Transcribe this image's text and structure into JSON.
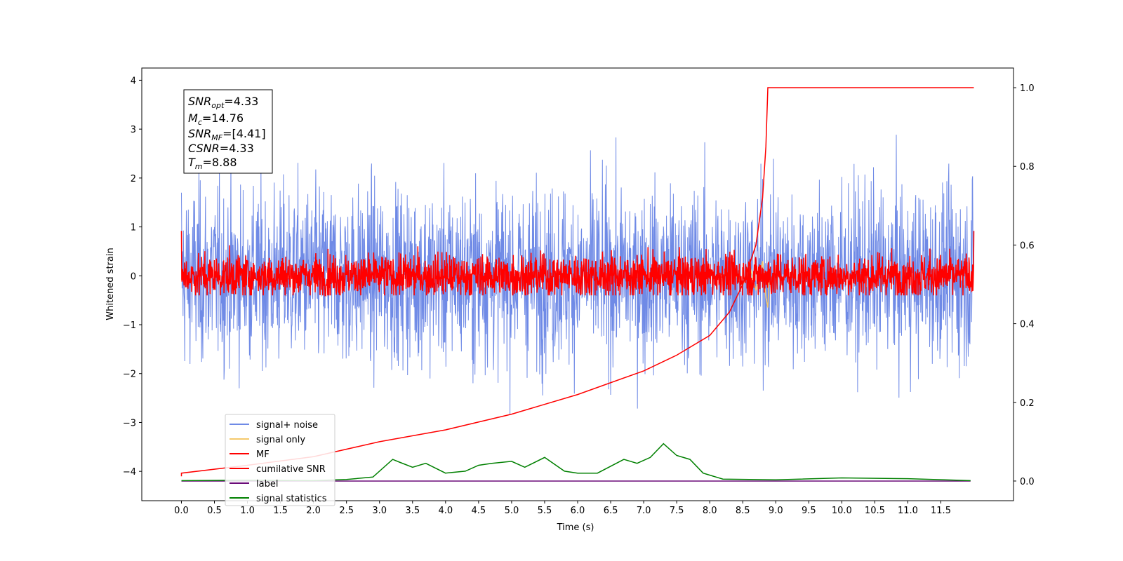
{
  "chart_data": {
    "type": "line",
    "xlabel": "Time (s)",
    "ylabel": "Whitened strain",
    "xlim": [
      -0.6,
      12.6
    ],
    "ylim": [
      -4.6,
      4.25
    ],
    "y2lim": [
      -0.05,
      1.05
    ],
    "xticks": [
      "0.0",
      "0.5",
      "1.0",
      "1.5",
      "2.0",
      "2.5",
      "3.0",
      "3.5",
      "4.0",
      "4.5",
      "5.0",
      "5.5",
      "6.0",
      "6.5",
      "7.0",
      "7.5",
      "8.0",
      "8.5",
      "9.0",
      "9.5",
      "10.0",
      "10.5",
      "11.0",
      "11.5"
    ],
    "yticks": [
      4,
      3,
      2,
      1,
      0,
      -1,
      -2,
      -3,
      -4
    ],
    "ytick_labels": [
      "4",
      "3",
      "2",
      "1",
      "0",
      "−1",
      "−2",
      "−3",
      "−4"
    ],
    "y2ticks": [
      "0.0",
      "0.2",
      "0.4",
      "0.6",
      "0.8",
      "1.0"
    ],
    "annotation": [
      {
        "main": "SNR",
        "sub": "opt",
        "value": "=4.33"
      },
      {
        "main": "M",
        "sub": "c",
        "value": "=14.76"
      },
      {
        "main": "SNR",
        "sub": "MF",
        "value": "=[4.41]"
      },
      {
        "main": "CSNR",
        "sub": "",
        "value": "=4.33"
      },
      {
        "main": "T",
        "sub": "m",
        "value": "=8.88"
      }
    ],
    "legend_position": "lower-left",
    "series": [
      {
        "name": "signal+ noise",
        "color": "#6f8ae6",
        "axis": "left",
        "description_values": {
          "t_start": 0.0,
          "t_end": 12.0,
          "std": 0.9
        }
      },
      {
        "name": "signal only",
        "color": "#f5c96b",
        "axis": "left",
        "values": [
          [
            8.4,
            0.0
          ],
          [
            8.5,
            -0.2
          ],
          [
            8.6,
            0.25
          ],
          [
            8.7,
            -0.3
          ],
          [
            8.8,
            0.3
          ],
          [
            8.85,
            -0.45
          ],
          [
            8.88,
            -0.65
          ],
          [
            8.9,
            0.0
          ]
        ]
      },
      {
        "name": "MF",
        "color": "#ff0000",
        "axis": "left",
        "description_values": {
          "t_start": 0.0,
          "t_end": 12.0,
          "std": 0.22
        }
      },
      {
        "name": "cumilative SNR",
        "color": "#ff0000",
        "axis": "right",
        "values": [
          [
            0.0,
            0.012
          ],
          [
            0.0,
            0.02
          ],
          [
            1.0,
            0.04
          ],
          [
            2.0,
            0.062
          ],
          [
            3.0,
            0.1
          ],
          [
            4.0,
            0.13
          ],
          [
            5.0,
            0.17
          ],
          [
            6.0,
            0.22
          ],
          [
            7.0,
            0.28
          ],
          [
            7.5,
            0.32
          ],
          [
            8.0,
            0.37
          ],
          [
            8.3,
            0.43
          ],
          [
            8.5,
            0.5
          ],
          [
            8.7,
            0.6
          ],
          [
            8.8,
            0.72
          ],
          [
            8.85,
            0.85
          ],
          [
            8.88,
            1.0
          ],
          [
            12.0,
            1.0
          ]
        ]
      },
      {
        "name": "label",
        "color": "#6a0a78",
        "axis": "right",
        "values": [
          [
            0.0,
            0.0
          ],
          [
            11.95,
            0.0
          ]
        ]
      },
      {
        "name": "signal statistics",
        "color": "#008000",
        "axis": "right",
        "values": [
          [
            0.0,
            0.001
          ],
          [
            1.0,
            0.002
          ],
          [
            2.0,
            0.001
          ],
          [
            2.5,
            0.004
          ],
          [
            2.9,
            0.01
          ],
          [
            3.2,
            0.055
          ],
          [
            3.3,
            0.048
          ],
          [
            3.5,
            0.035
          ],
          [
            3.7,
            0.045
          ],
          [
            4.0,
            0.02
          ],
          [
            4.3,
            0.025
          ],
          [
            4.5,
            0.04
          ],
          [
            4.7,
            0.045
          ],
          [
            5.0,
            0.05
          ],
          [
            5.2,
            0.035
          ],
          [
            5.5,
            0.06
          ],
          [
            5.8,
            0.025
          ],
          [
            6.0,
            0.02
          ],
          [
            6.3,
            0.02
          ],
          [
            6.7,
            0.055
          ],
          [
            6.9,
            0.045
          ],
          [
            7.1,
            0.06
          ],
          [
            7.3,
            0.095
          ],
          [
            7.5,
            0.065
          ],
          [
            7.7,
            0.055
          ],
          [
            7.9,
            0.02
          ],
          [
            8.2,
            0.005
          ],
          [
            9.0,
            0.003
          ],
          [
            10.0,
            0.008
          ],
          [
            11.0,
            0.006
          ],
          [
            11.95,
            0.001
          ]
        ]
      }
    ]
  }
}
